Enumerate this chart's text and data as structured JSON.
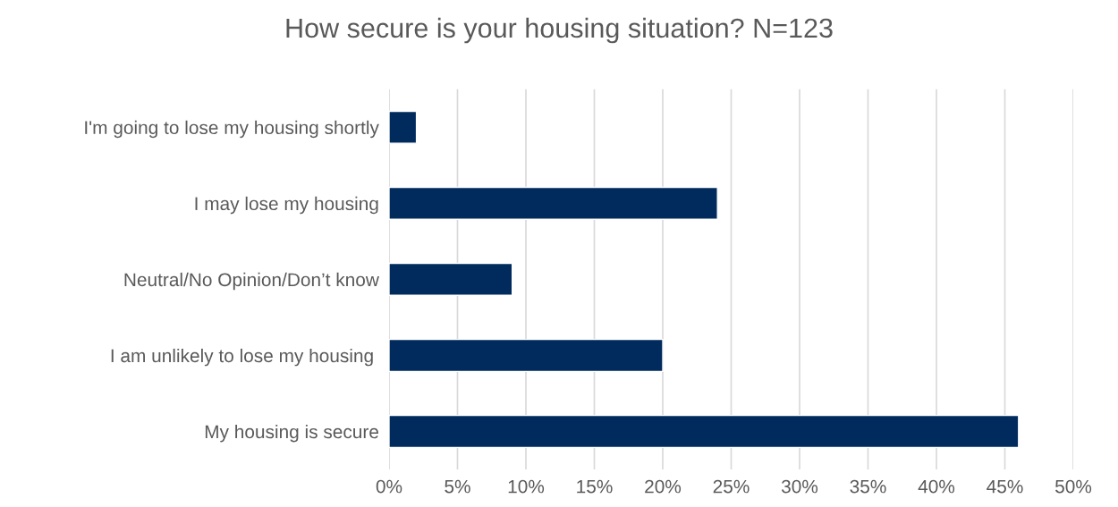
{
  "chart_data": {
    "type": "bar",
    "orientation": "horizontal",
    "title": "How secure is your housing situation? N=123",
    "categories": [
      "I'm going to lose my housing shortly",
      "I may lose my housing",
      "Neutral/No Opinion/Don’t know",
      "I am unlikely to lose my housing ",
      "My housing is secure"
    ],
    "values": [
      2,
      24,
      9,
      20,
      46
    ],
    "color": "#002b5c",
    "xlim": [
      0,
      50
    ],
    "xticks": [
      {
        "value": 0,
        "label": "0%"
      },
      {
        "value": 5,
        "label": "5%"
      },
      {
        "value": 10,
        "label": "10%"
      },
      {
        "value": 15,
        "label": "15%"
      },
      {
        "value": 20,
        "label": "20%"
      },
      {
        "value": 25,
        "label": "25%"
      },
      {
        "value": 30,
        "label": "30%"
      },
      {
        "value": 35,
        "label": "35%"
      },
      {
        "value": 40,
        "label": "40%"
      },
      {
        "value": 45,
        "label": "45%"
      },
      {
        "value": 50,
        "label": "50%"
      }
    ],
    "grid": "x",
    "legend": false
  }
}
